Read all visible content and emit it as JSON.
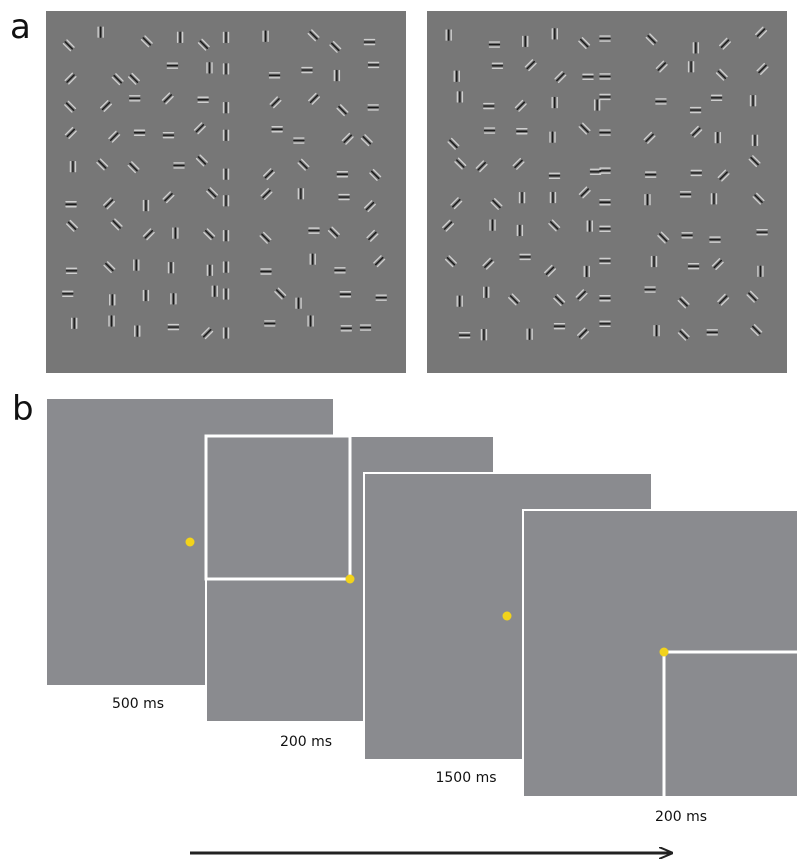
{
  "panel_a": {
    "label": "a"
  },
  "panel_b": {
    "label": "b",
    "frames": [
      {
        "duration": "500 ms"
      },
      {
        "duration": "200 ms"
      },
      {
        "duration": "1500 ms"
      },
      {
        "duration": "200 ms"
      }
    ]
  }
}
